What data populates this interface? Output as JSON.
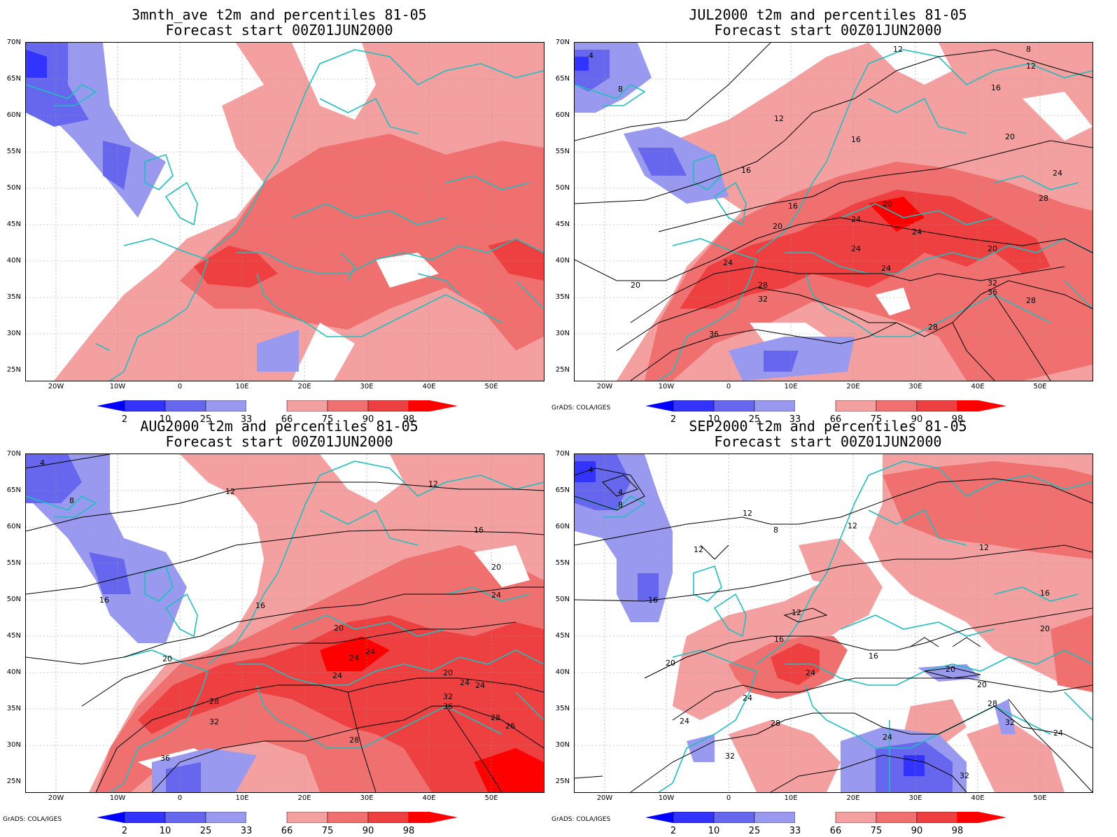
{
  "panels": [
    {
      "title_line1": "3mnth_ave t2m and percentiles 81-05",
      "title_line2": "Forecast start 00Z01JUN2000",
      "credit": ""
    },
    {
      "title_line1": "JUL2000 t2m and percentiles 81-05",
      "title_line2": "Forecast start 00Z01JUN2000",
      "credit": "GrADS: COLA/IGES"
    },
    {
      "title_line1": "AUG2000 t2m and percentiles 81-05",
      "title_line2": "Forecast start 00Z01JUN2000",
      "credit": "GrADS: COLA/IGES"
    },
    {
      "title_line1": "SEP2000 t2m and percentiles 81-05",
      "title_line2": "Forecast start 00Z01JUN2000",
      "credit": "GrADS: COLA/IGES"
    }
  ],
  "lat_labels": [
    "70N",
    "65N",
    "60N",
    "55N",
    "50N",
    "45N",
    "40N",
    "35N",
    "30N",
    "25N"
  ],
  "lon_labels": [
    "20W",
    "10W",
    "0",
    "10E",
    "20E",
    "30E",
    "40E",
    "50E"
  ],
  "colorbar": {
    "labels": [
      "2",
      "10",
      "25",
      "33",
      "66",
      "75",
      "90",
      "98"
    ],
    "colors": [
      "#0000ff",
      "#3333ff",
      "#6666ee",
      "#9999f0",
      "#ffffff",
      "#f5a0a0",
      "#f07070",
      "#ee4040",
      "#ff0000"
    ]
  },
  "contour_labels": {
    "p1": [],
    "p2": [
      "4",
      "8",
      "12",
      "12",
      "8",
      "16",
      "12",
      "16",
      "20",
      "16",
      "24",
      "28",
      "16",
      "20",
      "20",
      "24",
      "24",
      "24",
      "20",
      "24",
      "24",
      "28",
      "32",
      "32",
      "36",
      "28",
      "36",
      "28",
      "20"
    ],
    "p3": [
      "4",
      "8",
      "12",
      "12",
      "16",
      "16",
      "20",
      "16",
      "20",
      "20",
      "24",
      "24",
      "24",
      "24",
      "20",
      "24",
      "24",
      "28",
      "32",
      "32",
      "36",
      "28",
      "36",
      "28",
      "26"
    ],
    "p4": [
      "4",
      "4",
      "8",
      "12",
      "8",
      "12",
      "12",
      "12",
      "16",
      "16",
      "12",
      "16",
      "20",
      "20",
      "16",
      "20",
      "24",
      "24",
      "28",
      "24",
      "32",
      "28",
      "32",
      "24",
      "32",
      "24",
      "20"
    ]
  }
}
